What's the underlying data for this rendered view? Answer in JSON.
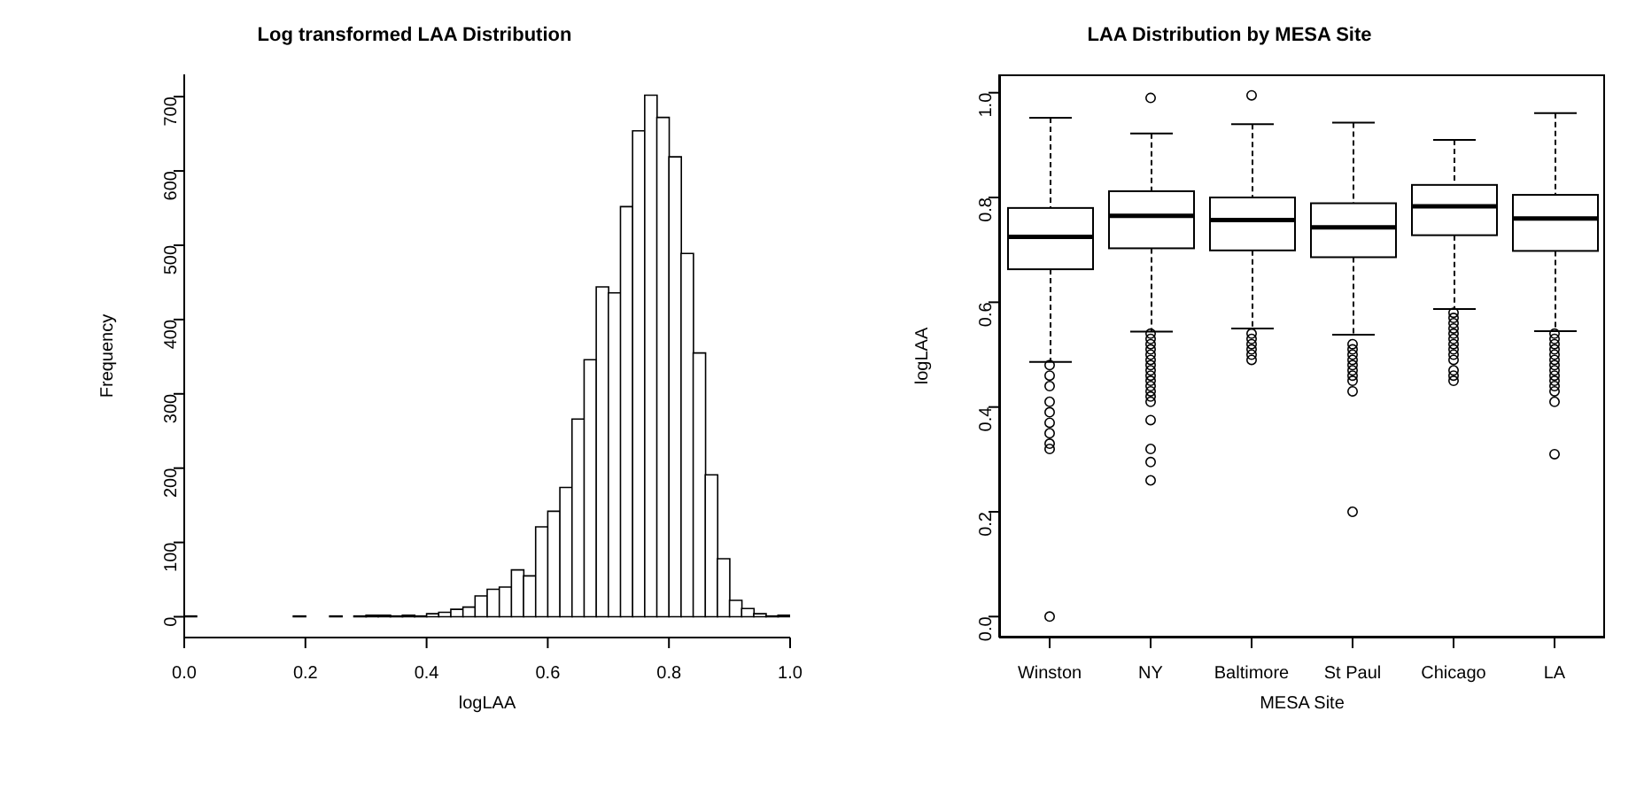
{
  "chart_data": [
    {
      "type": "histogram",
      "title": "Log transformed LAA Distribution",
      "xlabel": "logLAA",
      "ylabel": "Frequency",
      "color": "#ffffff",
      "bins": [
        0,
        0.02,
        0.04,
        0.06,
        0.08,
        0.1,
        0.12,
        0.14,
        0.16,
        0.18,
        0.2,
        0.22,
        0.24,
        0.26,
        0.28,
        0.3,
        0.32,
        0.34,
        0.36,
        0.38,
        0.4,
        0.42,
        0.44,
        0.46,
        0.48,
        0.5,
        0.52,
        0.54,
        0.56,
        0.58,
        0.6,
        0.62,
        0.64,
        0.66,
        0.68,
        0.7,
        0.72,
        0.74,
        0.76,
        0.78,
        0.8,
        0.82,
        0.84,
        0.86,
        0.88,
        0.9,
        0.92,
        0.94,
        0.96,
        0.98,
        1
      ],
      "values": [
        1,
        0,
        0,
        0,
        0,
        0,
        0,
        0,
        0,
        1,
        0,
        0,
        1,
        0,
        1,
        2,
        2,
        1,
        2,
        1,
        4,
        6,
        10,
        13,
        28,
        37,
        40,
        63,
        55,
        121,
        142,
        174,
        266,
        346,
        444,
        436,
        552,
        654,
        702,
        672,
        619,
        489,
        355,
        191,
        78,
        22,
        11,
        4,
        1,
        2
      ],
      "xlim": [
        0,
        1
      ],
      "xticks": [
        {
          "value": 0,
          "label": "0.0"
        },
        {
          "value": 0.2,
          "label": "0.2"
        },
        {
          "value": 0.4,
          "label": "0.4"
        },
        {
          "value": 0.6,
          "label": "0.6"
        },
        {
          "value": 0.8,
          "label": "0.8"
        },
        {
          "value": 1,
          "label": "1.0"
        }
      ],
      "ylim": [
        -28,
        730
      ],
      "yticks": [
        0,
        100,
        200,
        300,
        400,
        500,
        600,
        700
      ],
      "grid": false,
      "legend": false
    },
    {
      "type": "box",
      "title": "LAA Distribution by MESA Site",
      "xlabel": "MESA Site",
      "ylabel": "logLAA",
      "color": "#ffffff",
      "categories": [
        "Winston",
        "NY",
        "Baltimore",
        "St Paul",
        "Chicago",
        "LA"
      ],
      "boxes": [
        {
          "low": 0.486,
          "q1": 0.663,
          "median": 0.725,
          "q3": 0.78,
          "high": 0.952,
          "outliers": [
            0.48,
            0.46,
            0.44,
            0.41,
            0.39,
            0.37,
            0.35,
            0.33,
            0.32,
            0
          ]
        },
        {
          "low": 0.544,
          "q1": 0.703,
          "median": 0.765,
          "q3": 0.812,
          "high": 0.922,
          "outliers": [
            0.99,
            0.54,
            0.53,
            0.52,
            0.51,
            0.5,
            0.49,
            0.48,
            0.47,
            0.46,
            0.45,
            0.44,
            0.43,
            0.42,
            0.41,
            0.375,
            0.32,
            0.295,
            0.26
          ]
        },
        {
          "low": 0.55,
          "q1": 0.699,
          "median": 0.757,
          "q3": 0.8,
          "high": 0.94,
          "outliers": [
            0.995,
            0.54,
            0.53,
            0.52,
            0.51,
            0.5,
            0.49
          ]
        },
        {
          "low": 0.538,
          "q1": 0.686,
          "median": 0.743,
          "q3": 0.789,
          "high": 0.943,
          "outliers": [
            0.52,
            0.51,
            0.5,
            0.49,
            0.48,
            0.47,
            0.46,
            0.45,
            0.43,
            0.2
          ]
        },
        {
          "low": 0.587,
          "q1": 0.728,
          "median": 0.783,
          "q3": 0.824,
          "high": 0.91,
          "outliers": [
            0.58,
            0.57,
            0.56,
            0.55,
            0.54,
            0.53,
            0.52,
            0.51,
            0.5,
            0.49,
            0.47,
            0.46,
            0.45
          ]
        },
        {
          "low": 0.545,
          "q1": 0.698,
          "median": 0.76,
          "q3": 0.805,
          "high": 0.961,
          "outliers": [
            0.54,
            0.53,
            0.52,
            0.51,
            0.5,
            0.49,
            0.48,
            0.47,
            0.46,
            0.45,
            0.44,
            0.43,
            0.41,
            0.31
          ]
        }
      ],
      "ylim": [
        -0.04,
        1.035
      ],
      "yticks": [
        {
          "value": 0,
          "label": "0.0"
        },
        {
          "value": 0.2,
          "label": "0.2"
        },
        {
          "value": 0.4,
          "label": "0.4"
        },
        {
          "value": 0.6,
          "label": "0.6"
        },
        {
          "value": 0.8,
          "label": "0.8"
        },
        {
          "value": 1,
          "label": "1.0"
        }
      ],
      "grid": false,
      "legend": false
    }
  ]
}
